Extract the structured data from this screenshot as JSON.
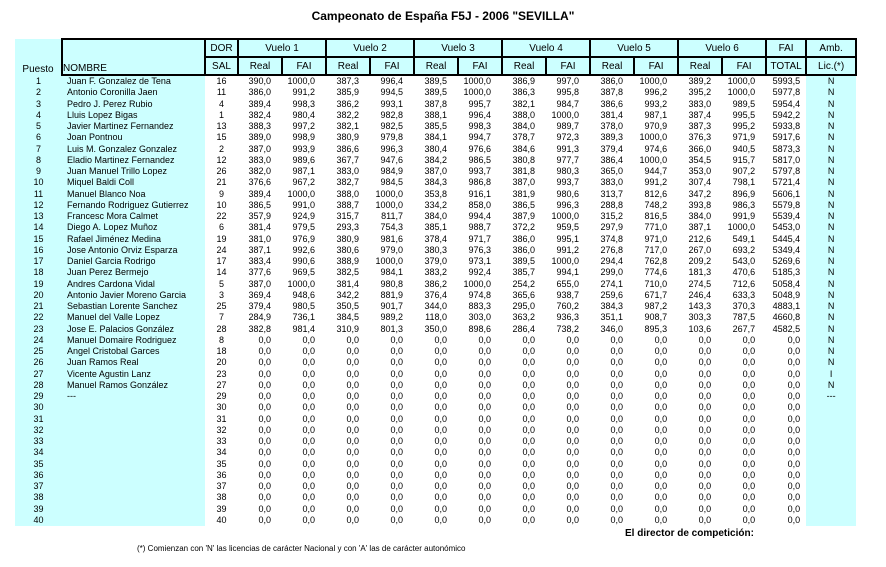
{
  "title": "Campeonato de España F5J - 2006 \"SEVILLA\"",
  "colors": {
    "highlight": "#ccffff",
    "border": "#000000",
    "background": "#ffffff"
  },
  "table": {
    "header": {
      "puesto": "Puesto",
      "nombre": "NOMBRE",
      "dor": "DOR",
      "sal": "SAL",
      "vuelos": [
        "Vuelo 1",
        "Vuelo 2",
        "Vuelo 3",
        "Vuelo 4",
        "Vuelo 5",
        "Vuelo 6"
      ],
      "real": "Real",
      "fai": "FAI",
      "fai_total_top": "FAI",
      "fai_total_bottom": "TOTAL",
      "amb_top": "Amb.",
      "amb_bottom": "Lic.(*)"
    },
    "rows": [
      [
        "1",
        "Juan F. Gonzalez de Tena",
        "16",
        "390,0",
        "1000,0",
        "387,3",
        "996,4",
        "389,5",
        "1000,0",
        "386,9",
        "997,0",
        "386,0",
        "1000,0",
        "389,2",
        "1000,0",
        "5993,5",
        "N"
      ],
      [
        "2",
        "Antonio Coronilla Jaen",
        "11",
        "386,0",
        "991,2",
        "385,9",
        "994,5",
        "389,5",
        "1000,0",
        "386,3",
        "995,8",
        "387,8",
        "996,2",
        "395,2",
        "1000,0",
        "5977,8",
        "N"
      ],
      [
        "3",
        "Pedro J. Perez Rubio",
        "4",
        "389,4",
        "998,3",
        "386,2",
        "993,1",
        "387,8",
        "995,7",
        "382,1",
        "984,7",
        "386,6",
        "993,2",
        "383,0",
        "989,5",
        "5954,4",
        "N"
      ],
      [
        "4",
        "Lluis Lopez Bigas",
        "1",
        "382,4",
        "980,4",
        "382,2",
        "982,8",
        "388,1",
        "996,4",
        "388,0",
        "1000,0",
        "381,4",
        "987,1",
        "387,4",
        "995,5",
        "5942,2",
        "N"
      ],
      [
        "5",
        "Javier Martinez Fernandez",
        "13",
        "388,3",
        "997,2",
        "382,1",
        "982,5",
        "385,5",
        "998,3",
        "384,0",
        "989,7",
        "378,0",
        "970,9",
        "387,3",
        "995,2",
        "5933,8",
        "N"
      ],
      [
        "6",
        "Joan Pontnou",
        "15",
        "389,0",
        "998,9",
        "380,9",
        "979,8",
        "384,1",
        "994,7",
        "378,7",
        "972,3",
        "389,3",
        "1000,0",
        "376,3",
        "971,9",
        "5917,6",
        "N"
      ],
      [
        "7",
        "Luis M. Gonzalez Gonzalez",
        "2",
        "387,0",
        "993,9",
        "386,6",
        "996,3",
        "380,4",
        "976,6",
        "384,6",
        "991,3",
        "379,4",
        "974,6",
        "366,0",
        "940,5",
        "5873,3",
        "N"
      ],
      [
        "8",
        "Eladio Martinez Fernandez",
        "12",
        "383,0",
        "989,6",
        "367,7",
        "947,6",
        "384,2",
        "986,5",
        "380,8",
        "977,7",
        "386,4",
        "1000,0",
        "354,5",
        "915,7",
        "5817,0",
        "N"
      ],
      [
        "9",
        "Juan Manuel Trillo Lopez",
        "26",
        "382,0",
        "987,1",
        "383,0",
        "984,9",
        "387,0",
        "993,7",
        "381,8",
        "980,3",
        "365,0",
        "944,7",
        "353,0",
        "907,2",
        "5797,8",
        "N"
      ],
      [
        "10",
        "Miquel Baldi Coll",
        "21",
        "376,6",
        "967,2",
        "382,7",
        "984,5",
        "384,3",
        "986,8",
        "387,0",
        "993,7",
        "383,0",
        "991,2",
        "307,4",
        "798,1",
        "5721,4",
        "N"
      ],
      [
        "11",
        "Manuel Blanco Noa",
        "9",
        "389,4",
        "1000,0",
        "388,0",
        "1000,0",
        "353,8",
        "916,1",
        "381,9",
        "980,6",
        "313,7",
        "812,6",
        "347,2",
        "896,9",
        "5606,1",
        "N"
      ],
      [
        "12",
        "Fernando Rodriguez Gutierrez",
        "10",
        "386,5",
        "991,0",
        "388,7",
        "1000,0",
        "334,2",
        "858,0",
        "386,5",
        "996,3",
        "288,8",
        "748,2",
        "393,8",
        "986,3",
        "5579,8",
        "N"
      ],
      [
        "13",
        "Francesc Mora Calmet",
        "22",
        "357,9",
        "924,9",
        "315,7",
        "811,7",
        "384,0",
        "994,4",
        "387,9",
        "1000,0",
        "315,2",
        "816,5",
        "384,0",
        "991,9",
        "5539,4",
        "N"
      ],
      [
        "14",
        "Diego A. Lopez Muñoz",
        "6",
        "381,4",
        "979,5",
        "293,3",
        "754,3",
        "385,1",
        "988,7",
        "372,2",
        "959,5",
        "297,9",
        "771,0",
        "387,1",
        "1000,0",
        "5453,0",
        "N"
      ],
      [
        "15",
        "Rafael Jiménez Medina",
        "19",
        "381,0",
        "976,9",
        "380,9",
        "981,6",
        "378,4",
        "971,7",
        "386,0",
        "995,1",
        "374,8",
        "971,0",
        "212,6",
        "549,1",
        "5445,4",
        "N"
      ],
      [
        "16",
        "Jose Antonio Orviz Esparza",
        "24",
        "387,1",
        "992,6",
        "380,6",
        "979,0",
        "380,3",
        "976,3",
        "386,0",
        "991,2",
        "276,8",
        "717,0",
        "267,0",
        "693,2",
        "5349,4",
        "N"
      ],
      [
        "17",
        "Daniel Garcia Rodrigo",
        "17",
        "383,4",
        "990,6",
        "388,9",
        "1000,0",
        "379,0",
        "973,1",
        "389,5",
        "1000,0",
        "294,4",
        "762,8",
        "209,2",
        "543,0",
        "5269,6",
        "N"
      ],
      [
        "18",
        "Juan Perez Bermejo",
        "14",
        "377,6",
        "969,5",
        "382,5",
        "984,1",
        "383,2",
        "992,4",
        "385,7",
        "994,1",
        "299,0",
        "774,6",
        "181,3",
        "470,6",
        "5185,3",
        "N"
      ],
      [
        "19",
        "Andres Cardona Vidal",
        "5",
        "387,0",
        "1000,0",
        "381,4",
        "980,8",
        "386,2",
        "1000,0",
        "254,2",
        "655,0",
        "274,1",
        "710,0",
        "274,5",
        "712,6",
        "5058,4",
        "N"
      ],
      [
        "20",
        "Antonio Javier Moreno Garcia",
        "3",
        "369,4",
        "948,6",
        "342,2",
        "881,9",
        "376,4",
        "974,8",
        "365,6",
        "938,7",
        "259,6",
        "671,7",
        "246,4",
        "633,3",
        "5048,9",
        "N"
      ],
      [
        "21",
        "Sebastian Lorente Sanchez",
        "25",
        "379,4",
        "980,5",
        "350,5",
        "901,7",
        "344,0",
        "883,3",
        "295,0",
        "760,2",
        "384,3",
        "987,2",
        "143,3",
        "370,3",
        "4883,1",
        "N"
      ],
      [
        "22",
        "Manuel del Valle Lopez",
        "7",
        "284,9",
        "736,1",
        "384,5",
        "989,2",
        "118,0",
        "303,0",
        "363,2",
        "936,3",
        "351,1",
        "908,7",
        "303,3",
        "787,5",
        "4660,8",
        "N"
      ],
      [
        "23",
        "Jose E. Palacios González",
        "28",
        "382,8",
        "981,4",
        "310,9",
        "801,3",
        "350,0",
        "898,6",
        "286,4",
        "738,2",
        "346,0",
        "895,3",
        "103,6",
        "267,7",
        "4582,5",
        "N"
      ],
      [
        "24",
        "Manuel Domaire Rodriguez",
        "8",
        "0,0",
        "0,0",
        "0,0",
        "0,0",
        "0,0",
        "0,0",
        "0,0",
        "0,0",
        "0,0",
        "0,0",
        "0,0",
        "0,0",
        "0,0",
        "N"
      ],
      [
        "25",
        "Angel Cristobal Garces",
        "18",
        "0,0",
        "0,0",
        "0,0",
        "0,0",
        "0,0",
        "0,0",
        "0,0",
        "0,0",
        "0,0",
        "0,0",
        "0,0",
        "0,0",
        "0,0",
        "N"
      ],
      [
        "26",
        "Juan Ramos Real",
        "20",
        "0,0",
        "0,0",
        "0,0",
        "0,0",
        "0,0",
        "0,0",
        "0,0",
        "0,0",
        "0,0",
        "0,0",
        "0,0",
        "0,0",
        "0,0",
        "N"
      ],
      [
        "27",
        "Vicente Agustin Lanz",
        "23",
        "0,0",
        "0,0",
        "0,0",
        "0,0",
        "0,0",
        "0,0",
        "0,0",
        "0,0",
        "0,0",
        "0,0",
        "0,0",
        "0,0",
        "0,0",
        "I"
      ],
      [
        "28",
        "Manuel Ramos González",
        "27",
        "0,0",
        "0,0",
        "0,0",
        "0,0",
        "0,0",
        "0,0",
        "0,0",
        "0,0",
        "0,0",
        "0,0",
        "0,0",
        "0,0",
        "0,0",
        "N"
      ],
      [
        "29",
        "---",
        "29",
        "0,0",
        "0,0",
        "0,0",
        "0,0",
        "0,0",
        "0,0",
        "0,0",
        "0,0",
        "0,0",
        "0,0",
        "0,0",
        "0,0",
        "0,0",
        "---"
      ],
      [
        "30",
        "",
        "30",
        "0,0",
        "0,0",
        "0,0",
        "0,0",
        "0,0",
        "0,0",
        "0,0",
        "0,0",
        "0,0",
        "0,0",
        "0,0",
        "0,0",
        "0,0",
        ""
      ],
      [
        "31",
        "",
        "31",
        "0,0",
        "0,0",
        "0,0",
        "0,0",
        "0,0",
        "0,0",
        "0,0",
        "0,0",
        "0,0",
        "0,0",
        "0,0",
        "0,0",
        "0,0",
        ""
      ],
      [
        "32",
        "",
        "32",
        "0,0",
        "0,0",
        "0,0",
        "0,0",
        "0,0",
        "0,0",
        "0,0",
        "0,0",
        "0,0",
        "0,0",
        "0,0",
        "0,0",
        "0,0",
        ""
      ],
      [
        "33",
        "",
        "33",
        "0,0",
        "0,0",
        "0,0",
        "0,0",
        "0,0",
        "0,0",
        "0,0",
        "0,0",
        "0,0",
        "0,0",
        "0,0",
        "0,0",
        "0,0",
        ""
      ],
      [
        "34",
        "",
        "34",
        "0,0",
        "0,0",
        "0,0",
        "0,0",
        "0,0",
        "0,0",
        "0,0",
        "0,0",
        "0,0",
        "0,0",
        "0,0",
        "0,0",
        "0,0",
        ""
      ],
      [
        "35",
        "",
        "35",
        "0,0",
        "0,0",
        "0,0",
        "0,0",
        "0,0",
        "0,0",
        "0,0",
        "0,0",
        "0,0",
        "0,0",
        "0,0",
        "0,0",
        "0,0",
        ""
      ],
      [
        "36",
        "",
        "36",
        "0,0",
        "0,0",
        "0,0",
        "0,0",
        "0,0",
        "0,0",
        "0,0",
        "0,0",
        "0,0",
        "0,0",
        "0,0",
        "0,0",
        "0,0",
        ""
      ],
      [
        "37",
        "",
        "37",
        "0,0",
        "0,0",
        "0,0",
        "0,0",
        "0,0",
        "0,0",
        "0,0",
        "0,0",
        "0,0",
        "0,0",
        "0,0",
        "0,0",
        "0,0",
        ""
      ],
      [
        "38",
        "",
        "38",
        "0,0",
        "0,0",
        "0,0",
        "0,0",
        "0,0",
        "0,0",
        "0,0",
        "0,0",
        "0,0",
        "0,0",
        "0,0",
        "0,0",
        "0,0",
        ""
      ],
      [
        "39",
        "",
        "39",
        "0,0",
        "0,0",
        "0,0",
        "0,0",
        "0,0",
        "0,0",
        "0,0",
        "0,0",
        "0,0",
        "0,0",
        "0,0",
        "0,0",
        "0,0",
        ""
      ],
      [
        "40",
        "",
        "40",
        "0,0",
        "0,0",
        "0,0",
        "0,0",
        "0,0",
        "0,0",
        "0,0",
        "0,0",
        "0,0",
        "0,0",
        "0,0",
        "0,0",
        "0,0",
        ""
      ]
    ]
  },
  "footer": {
    "note": "(*) Comienzan con 'N' las licencias de carácter Nacional y con 'A' las de carácter autonómico",
    "director": "El director de competición:"
  }
}
